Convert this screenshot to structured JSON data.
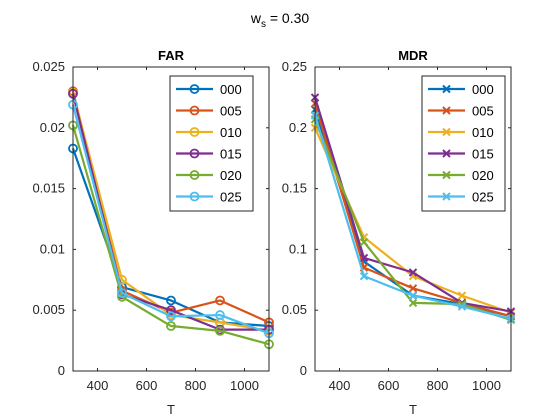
{
  "figure": {
    "suptitle_main": "w",
    "suptitle_sub": "s",
    "suptitle_rest": " = 0.30"
  },
  "chart_data": [
    {
      "type": "line",
      "title": "FAR",
      "xlabel": "T",
      "ylabel": "",
      "x": [
        300,
        500,
        700,
        900,
        1100
      ],
      "xlim": [
        300,
        1100
      ],
      "ylim": [
        0,
        0.025
      ],
      "xticks": [
        400,
        600,
        800,
        1000
      ],
      "xtick_labels": [
        "400",
        "600",
        "800",
        "1000"
      ],
      "yticks": [
        0,
        0.005,
        0.01,
        0.015,
        0.02,
        0.025
      ],
      "ytick_labels": [
        "0",
        "0.005",
        "0.01",
        "0.015",
        "0.02",
        "0.025"
      ],
      "marker": "circle",
      "legend_position": "top-right",
      "series": [
        {
          "name": "000",
          "color": "#0072BD",
          "values": [
            0.0183,
            0.0069,
            0.0058,
            0.004,
            0.0037
          ]
        },
        {
          "name": "005",
          "color": "#D95319",
          "values": [
            0.023,
            0.0066,
            0.0048,
            0.0058,
            0.004
          ]
        },
        {
          "name": "010",
          "color": "#EDB120",
          "values": [
            0.0229,
            0.0075,
            0.0046,
            0.004,
            0.0033
          ]
        },
        {
          "name": "015",
          "color": "#7E2F8E",
          "values": [
            0.0228,
            0.0063,
            0.005,
            0.0034,
            0.0034
          ]
        },
        {
          "name": "020",
          "color": "#77AC30",
          "values": [
            0.0202,
            0.0061,
            0.0037,
            0.0033,
            0.0022
          ]
        },
        {
          "name": "025",
          "color": "#4DBEEE",
          "values": [
            0.0219,
            0.0064,
            0.0045,
            0.0046,
            0.0031
          ]
        }
      ]
    },
    {
      "type": "line",
      "title": "MDR",
      "xlabel": "T",
      "ylabel": "",
      "x": [
        300,
        500,
        700,
        900,
        1100
      ],
      "xlim": [
        300,
        1100
      ],
      "ylim": [
        0,
        0.25
      ],
      "xticks": [
        400,
        600,
        800,
        1000
      ],
      "xtick_labels": [
        "400",
        "600",
        "800",
        "1000"
      ],
      "yticks": [
        0,
        0.05,
        0.1,
        0.15,
        0.2,
        0.25
      ],
      "ytick_labels": [
        "0",
        "0.05",
        "0.1",
        "0.15",
        "0.2",
        "0.25"
      ],
      "marker": "x",
      "legend_position": "top-right",
      "series": [
        {
          "name": "000",
          "color": "#0072BD",
          "values": [
            0.215,
            0.09,
            0.062,
            0.055,
            0.045
          ]
        },
        {
          "name": "005",
          "color": "#D95319",
          "values": [
            0.22,
            0.085,
            0.068,
            0.056,
            0.045
          ]
        },
        {
          "name": "010",
          "color": "#EDB120",
          "values": [
            0.2,
            0.11,
            0.078,
            0.062,
            0.048
          ]
        },
        {
          "name": "015",
          "color": "#7E2F8E",
          "values": [
            0.225,
            0.093,
            0.081,
            0.056,
            0.049
          ]
        },
        {
          "name": "020",
          "color": "#77AC30",
          "values": [
            0.207,
            0.106,
            0.056,
            0.055,
            0.042
          ]
        },
        {
          "name": "025",
          "color": "#4DBEEE",
          "values": [
            0.21,
            0.078,
            0.062,
            0.053,
            0.043
          ]
        }
      ]
    }
  ]
}
